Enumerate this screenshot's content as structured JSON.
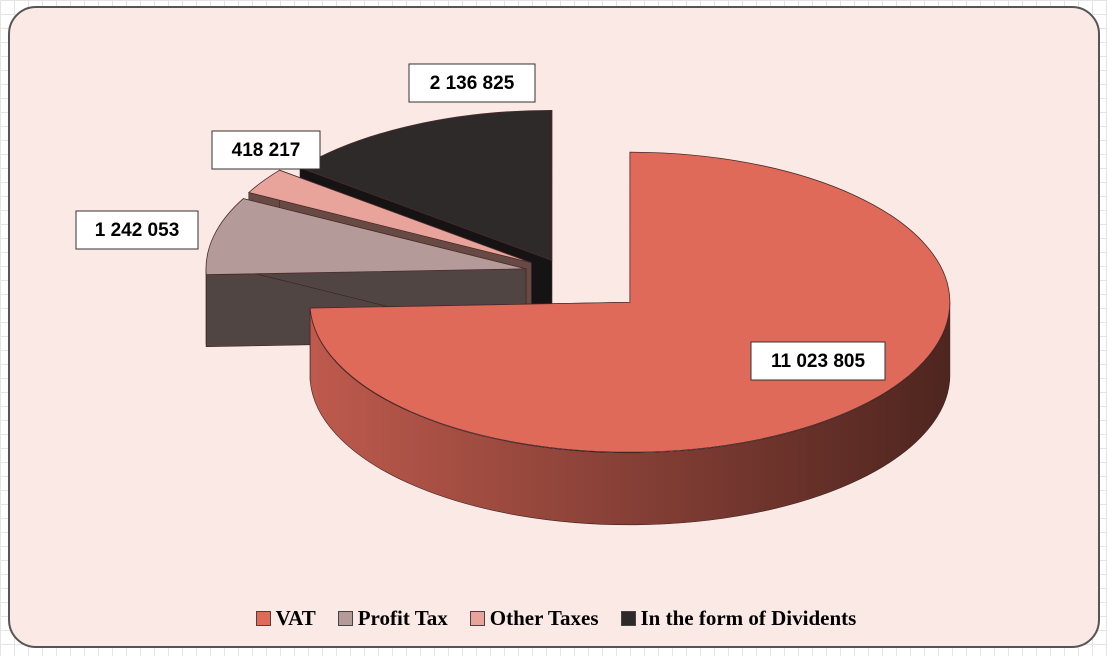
{
  "chart_data": {
    "type": "pie",
    "categories": [
      "VAT",
      "Profit Tax",
      "Other Taxes",
      "In the form of Dividents"
    ],
    "values": [
      11023805,
      1242053,
      418217,
      2136825
    ],
    "value_labels": [
      "11 023 805",
      "1 242 053",
      "418 217",
      "2 136 825"
    ],
    "colors": [
      "#e06a5a",
      "#b49a98",
      "#e8a49a",
      "#2e2a2a"
    ],
    "legend": "bottom"
  }
}
